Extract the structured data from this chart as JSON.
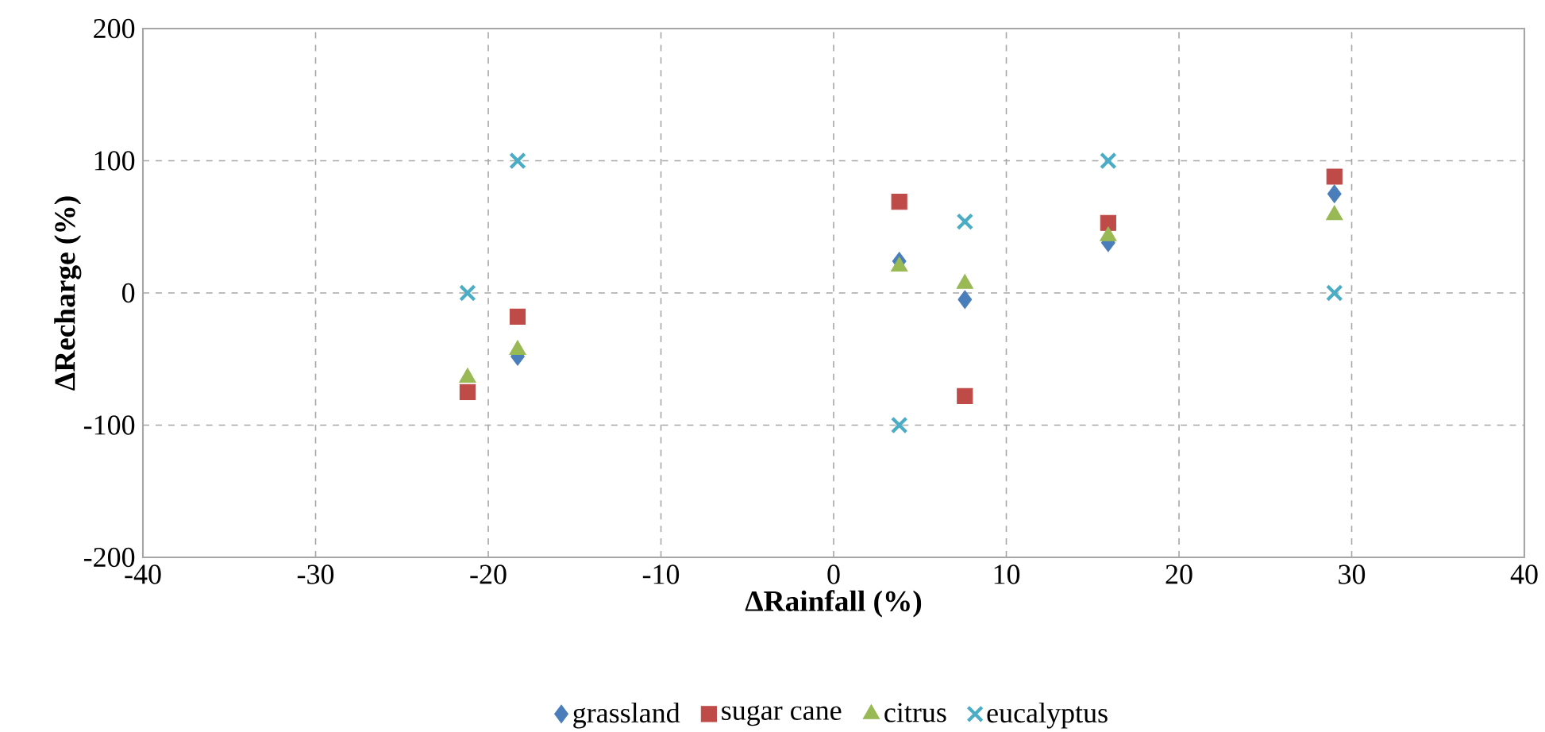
{
  "chart_data": {
    "type": "scatter",
    "xlabel": "ΔRainfall (%)",
    "ylabel": "ΔRecharge (%)",
    "x": [
      -21.2,
      -18.3,
      3.8,
      7.6,
      15.9,
      29.0
    ],
    "xlim": [
      -40,
      40
    ],
    "xticks": [
      -40,
      -30,
      -20,
      -10,
      0,
      10,
      20,
      30,
      40
    ],
    "ylim": [
      -200,
      200
    ],
    "yticks": [
      -200,
      -100,
      0,
      100,
      200
    ],
    "grid": true,
    "legend": "bottom",
    "series": [
      {
        "name": "grassland",
        "color": "#4a7ebb",
        "marker": "diamond",
        "values": [
          null,
          -48,
          24,
          -5,
          38,
          75
        ]
      },
      {
        "name": "sugar cane",
        "color": "#be4b48",
        "marker": "square",
        "values": [
          -75,
          -18,
          69,
          -78,
          53,
          88
        ]
      },
      {
        "name": "citrus",
        "color": "#98b954",
        "marker": "triangle",
        "values": [
          -64,
          -43,
          20,
          7,
          43,
          59
        ]
      },
      {
        "name": "eucalyptus",
        "color": "#4bacc6",
        "marker": "cross",
        "values": [
          0,
          100,
          -100,
          54,
          100,
          0
        ]
      }
    ]
  }
}
